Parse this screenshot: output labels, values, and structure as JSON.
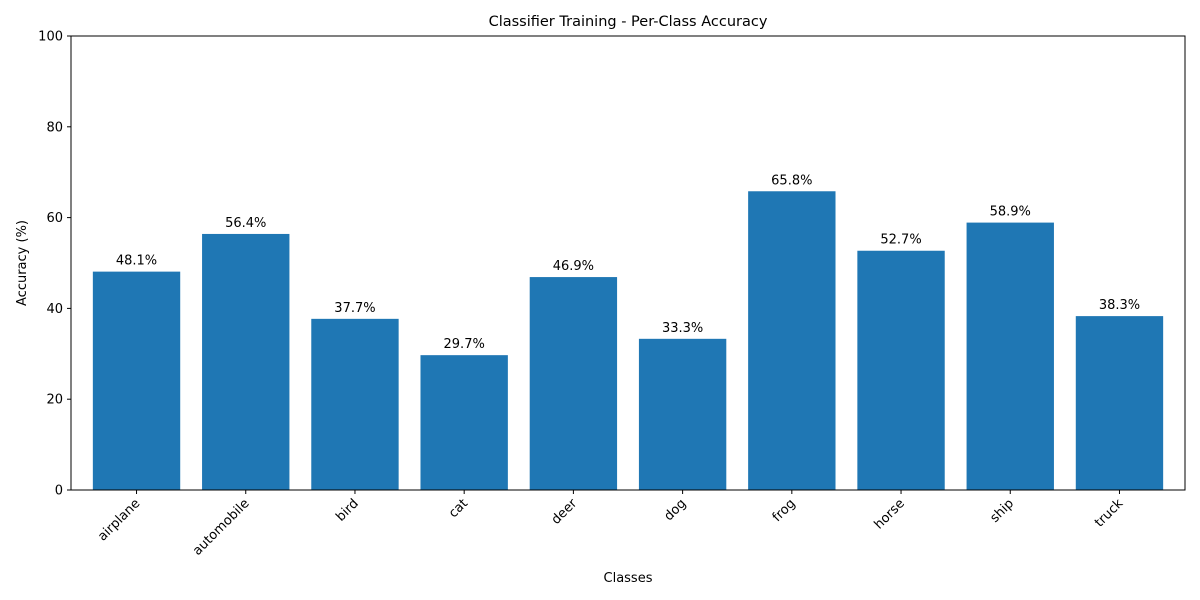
{
  "chart_data": {
    "type": "bar",
    "title": "Classifier Training - Per-Class Accuracy",
    "xlabel": "Classes",
    "ylabel": "Accuracy (%)",
    "categories": [
      "airplane",
      "automobile",
      "bird",
      "cat",
      "deer",
      "dog",
      "frog",
      "horse",
      "ship",
      "truck"
    ],
    "values": [
      48.1,
      56.4,
      37.7,
      29.7,
      46.9,
      33.3,
      65.8,
      52.7,
      58.9,
      38.3
    ],
    "data_labels": [
      "48.1%",
      "56.4%",
      "37.7%",
      "29.7%",
      "46.9%",
      "33.3%",
      "65.8%",
      "52.7%",
      "58.9%",
      "38.3%"
    ],
    "ylim": [
      0,
      100
    ],
    "yticks": [
      0,
      20,
      40,
      60,
      80,
      100
    ],
    "grid": false,
    "legend": "none",
    "bar_color": "#1f77b4",
    "x_tick_rotation_degrees": 45
  }
}
